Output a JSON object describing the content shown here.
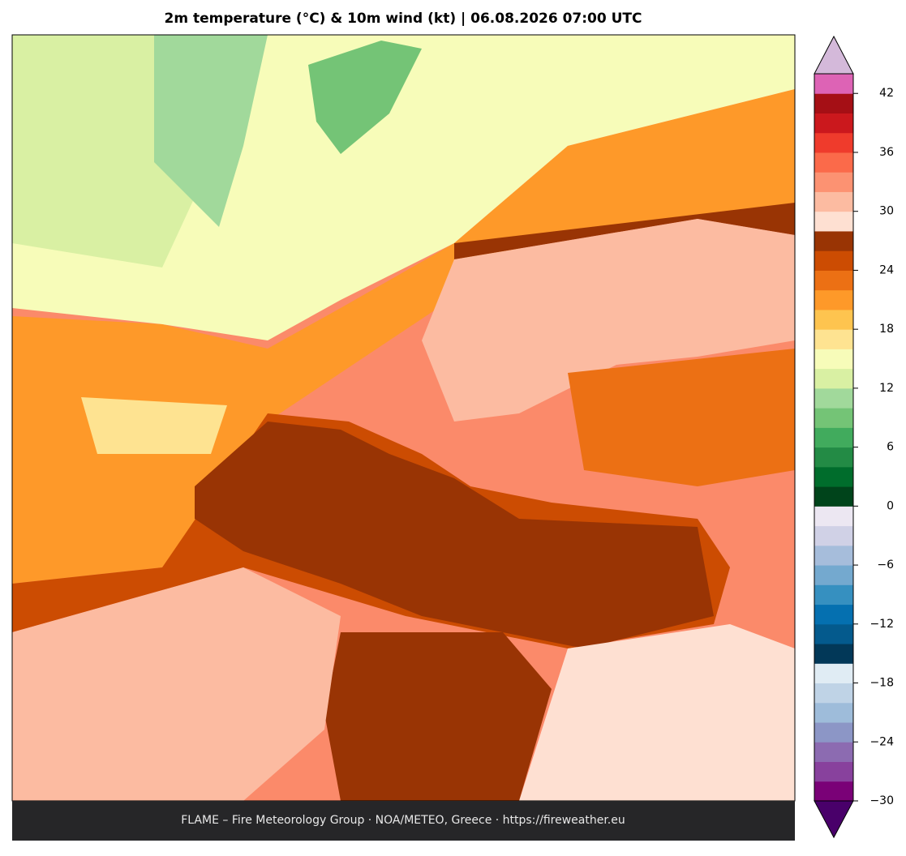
{
  "title": "2m temperature (°C) & 10m wind (kt)  |  06.08.2026 07:00 UTC",
  "footer": "FLAME – Fire Meteorology Group · NOA/METEO, Greece · https://fireweather.eu",
  "colorbar": {
    "lim": [
      -30,
      44
    ],
    "ticks": [
      {
        "value": -30,
        "label": "−30"
      },
      {
        "value": -24,
        "label": "−24"
      },
      {
        "value": -18,
        "label": "−18"
      },
      {
        "value": -12,
        "label": "−12"
      },
      {
        "value": -6,
        "label": "−6"
      },
      0,
      6,
      12,
      18,
      24,
      30,
      36,
      42
    ],
    "colors": [
      "#7a0177",
      "#88419d",
      "#8c6bb1",
      "#8c96c6",
      "#9ebcda",
      "#bfd3e6",
      "#e0ecf4",
      "#023858",
      "#045a8d",
      "#0570b0",
      "#3690c0",
      "#74a9cf",
      "#a6bddb",
      "#d0d1e6",
      "#ece7f2",
      "#00441b",
      "#006d2c",
      "#238b45",
      "#41ab5d",
      "#74c476",
      "#a1d99b",
      "#d9f0a3",
      "#f7fcb9",
      "#fee391",
      "#fec44f",
      "#fe9929",
      "#ec7014",
      "#cc4c02",
      "#993404",
      "#fee0d2",
      "#fcbba1",
      "#fc9272",
      "#fb6a4a",
      "#ef3b2c",
      "#cb181d",
      "#a50f15",
      "#dd63b5"
    ],
    "under_color": "#49006a",
    "over_color": "#d4b9da"
  }
}
